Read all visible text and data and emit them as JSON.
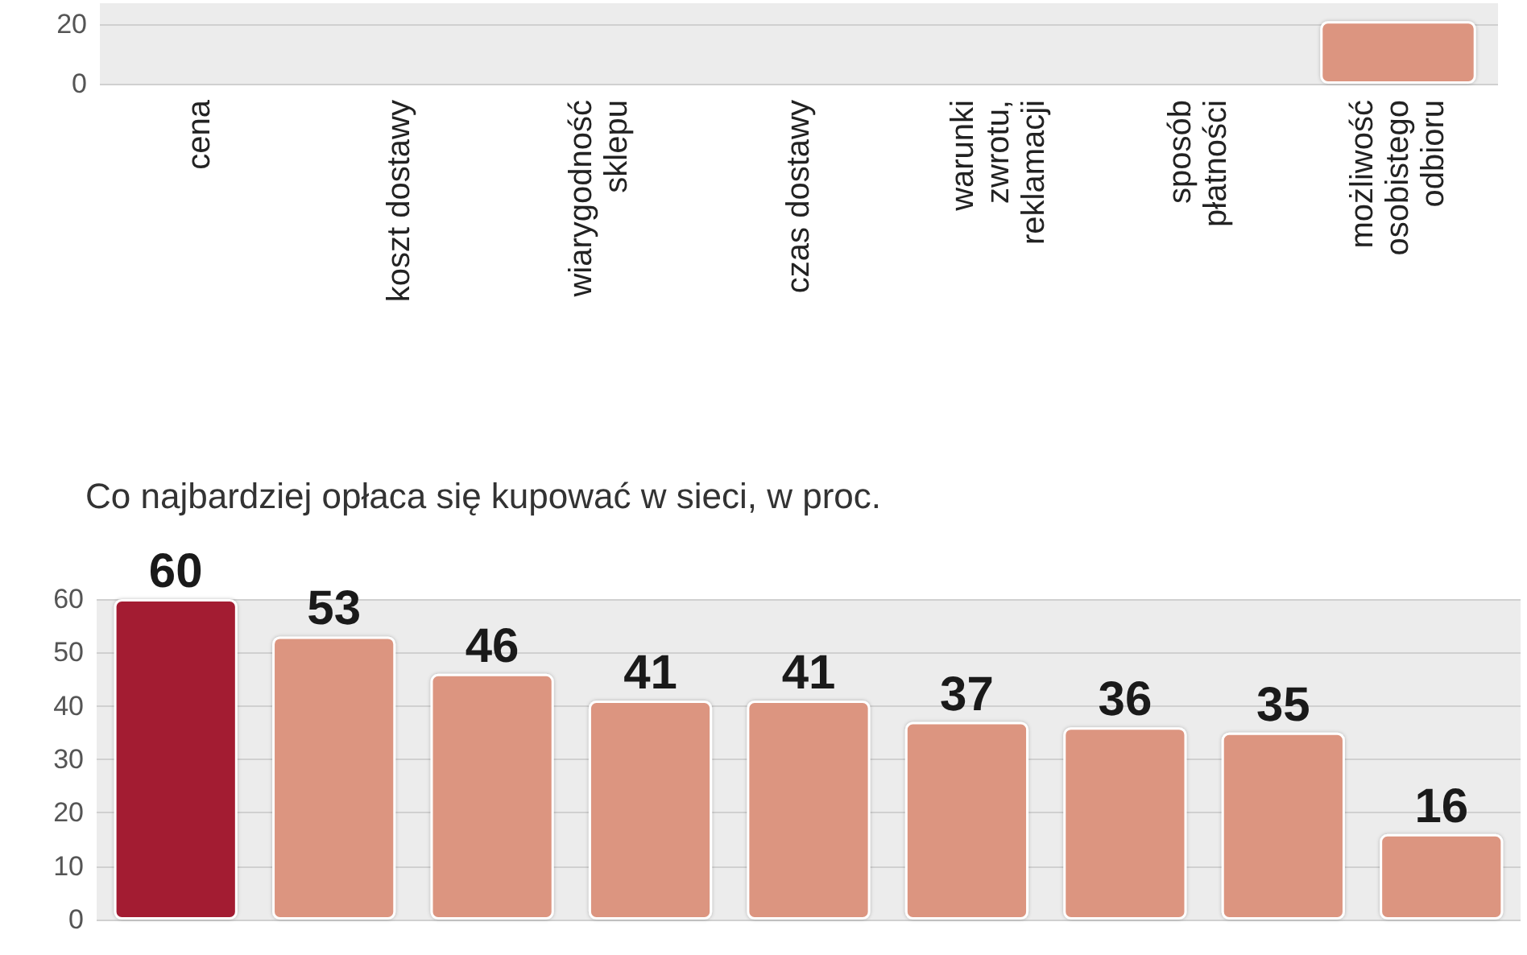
{
  "chart_data": [
    {
      "type": "bar",
      "categories": [
        "cena",
        "koszt dostawy",
        "wiarygodność sklepu",
        "czas dostawy",
        "warunki zwrotu, reklamacji",
        "sposób płatności",
        "możliwość osobistego odbioru"
      ],
      "values": [
        null,
        null,
        null,
        null,
        null,
        null,
        21
      ],
      "colors": [
        "#a31c33",
        "#dc9580",
        "#dc9580",
        "#dc9580",
        "#dc9580",
        "#dc9580",
        "#dc9580"
      ],
      "ylim": [
        0,
        27
      ],
      "yticks": [
        0,
        20
      ],
      "grid": "y"
    },
    {
      "type": "bar",
      "title": "Co najbardziej opłaca się kupować w sieci, w proc.",
      "categories": [
        null,
        null,
        null,
        null,
        null,
        null,
        null,
        null,
        null
      ],
      "values": [
        60,
        53,
        46,
        41,
        41,
        37,
        36,
        35,
        16
      ],
      "colors": [
        "#a31c33",
        "#dc9580",
        "#dc9580",
        "#dc9580",
        "#dc9580",
        "#dc9580",
        "#dc9580",
        "#dc9580",
        "#dc9580"
      ],
      "ylim": [
        0,
        60
      ],
      "yticks": [
        0,
        10,
        20,
        30,
        40,
        50,
        60
      ],
      "grid": "y",
      "data_labels": true
    }
  ]
}
